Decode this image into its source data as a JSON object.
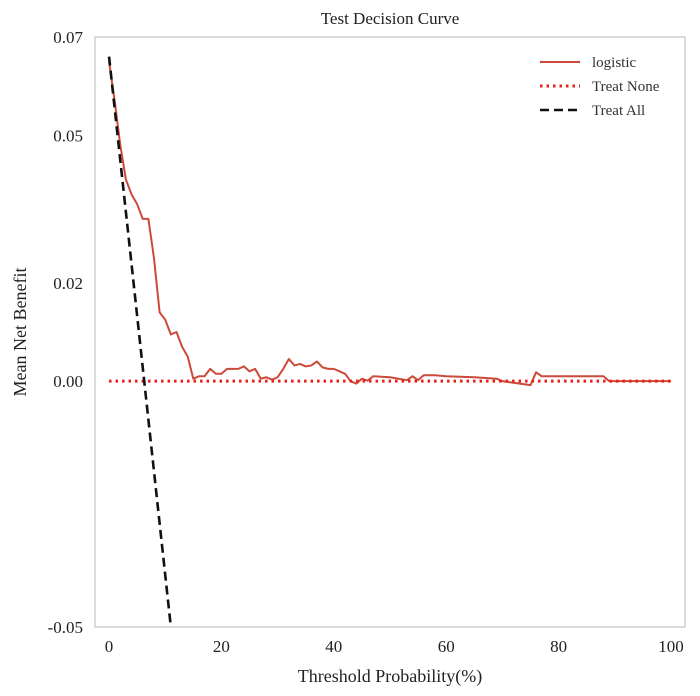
{
  "chart_data": {
    "type": "line",
    "title": "Test Decision Curve",
    "xlabel": "Threshold Probability(%)",
    "ylabel": "Mean Net Benefit",
    "xlim": [
      -2.5,
      102.5
    ],
    "ylim": [
      -0.05,
      0.07
    ],
    "xticks": [
      0,
      20,
      40,
      60,
      80,
      100
    ],
    "xtick_labels": [
      "0",
      "20",
      "40",
      "60",
      "80",
      "100"
    ],
    "yticks": [
      0.07,
      0.05,
      0.02,
      0.0,
      -0.05
    ],
    "ytick_labels": [
      "0.07",
      "0.05",
      "0.02",
      "0.00",
      "-0.05"
    ],
    "grid": false,
    "legend_position": "top-right",
    "series": [
      {
        "name": "logistic",
        "style": "solid",
        "color": "#cc4a3a",
        "x": [
          0,
          1,
          2,
          3,
          4,
          5,
          6,
          7,
          8,
          9,
          10,
          11,
          12,
          13,
          14,
          15,
          16,
          17,
          18,
          19,
          20,
          21,
          22,
          23,
          24,
          25,
          26,
          27,
          28,
          29,
          30,
          31,
          32,
          33,
          34,
          35,
          36,
          37,
          38,
          39,
          40,
          41,
          42,
          43,
          44,
          45,
          46,
          47,
          50,
          53,
          54,
          55,
          56,
          58,
          60,
          65,
          69,
          70,
          75,
          76,
          77,
          80,
          85,
          88,
          89,
          95,
          100
        ],
        "y": [
          0.065,
          0.057,
          0.048,
          0.041,
          0.038,
          0.036,
          0.033,
          0.033,
          0.025,
          0.014,
          0.0125,
          0.0095,
          0.01,
          0.007,
          0.005,
          0.0005,
          0.001,
          0.001,
          0.0025,
          0.0015,
          0.0015,
          0.0025,
          0.0025,
          0.0025,
          0.003,
          0.002,
          0.0025,
          0.0005,
          0.0008,
          0.0003,
          0.0008,
          0.0025,
          0.0045,
          0.0032,
          0.0035,
          0.003,
          0.0032,
          0.004,
          0.0028,
          0.0025,
          0.0025,
          0.002,
          0.0015,
          0.0,
          -0.0005,
          0.0005,
          0.0001,
          0.001,
          0.0008,
          0.0002,
          0.001,
          0.0002,
          0.0012,
          0.0012,
          0.001,
          0.0008,
          0.0005,
          0.0,
          -0.0008,
          0.0018,
          0.001,
          0.001,
          0.001,
          0.001,
          0.0,
          0.0,
          0.0
        ]
      },
      {
        "name": "Treat None",
        "style": "dotted",
        "color": "#e8201a",
        "x": [
          0,
          100
        ],
        "y": [
          0.0,
          0.0
        ]
      },
      {
        "name": "Treat All",
        "style": "dashed",
        "color": "#111111",
        "x": [
          0,
          11
        ],
        "y": [
          0.066,
          -0.05
        ]
      }
    ]
  }
}
